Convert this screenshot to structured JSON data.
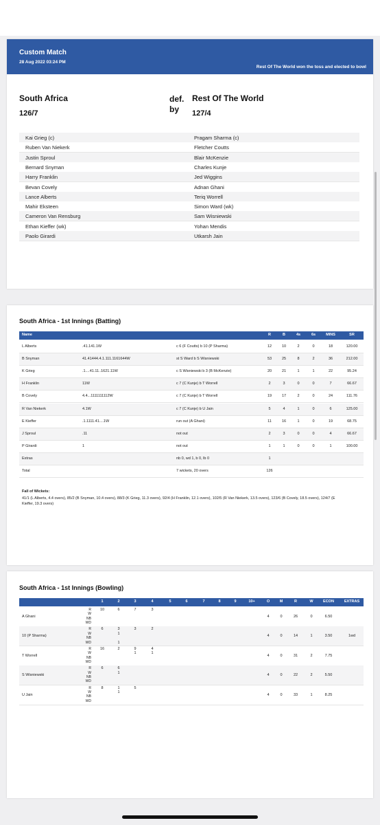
{
  "header": {
    "title": "Custom Match",
    "date": "28 Aug 2022 03:24 PM",
    "toss": "Rest Of The World won the toss and elected to bowl"
  },
  "result": {
    "team1": "South Africa",
    "score1": "126/7",
    "verdict": "def. by",
    "team2": "Rest Of The World",
    "score2": "127/4"
  },
  "players": {
    "team1": [
      "Kai Grieg (c)",
      "Ruben Van Niekerk",
      "Justin Sproul",
      "Bernard Snyman",
      "Harry Franklin",
      "Bevan Covely",
      "Lance Alberts",
      "Mahir Eksteen",
      "Cameron Van Rensburg",
      "Ethan Kieffer (wk)",
      "Paolo Girardi"
    ],
    "team2": [
      "Pragam Sharma (c)",
      "Fletcher Coutts",
      "Blair McKenzie",
      "Charles Kunje",
      "Jed Wiggins",
      "Adnan Ghani",
      "Teriq Worrell",
      "Simon Ward (wk)",
      "Sam Wisniewski",
      "Yohan Mendis",
      "Utkarsh Jain"
    ]
  },
  "batting": {
    "title": "South Africa - 1st Innings (Batting)",
    "columns": [
      "Name",
      "R",
      "B",
      "4s",
      "6s",
      "MINS",
      "SR"
    ],
    "rows": [
      [
        "L Alberts",
        ".41.141.1W",
        "c 6 (F Coutts) b 10 (P Sharma)",
        "12",
        "10",
        "2",
        "0",
        "18",
        "120.00"
      ],
      [
        "B Snyman",
        "41.41444.4.1.111.1161644W",
        "st S Ward b S Wisniewski",
        "53",
        "25",
        "8",
        "2",
        "36",
        "212.00"
      ],
      [
        "K Grieg",
        ".1....41.11..1621.11W",
        "c S Wisniewski b 3 (B McKenzie)",
        "20",
        "21",
        "1",
        "1",
        "22",
        "95.24"
      ],
      [
        "H Franklin",
        "11W",
        "c 7 (C Kunje) b T Worrell",
        "2",
        "3",
        "0",
        "0",
        "7",
        "66.67"
      ],
      [
        "B Covely",
        "4.4...1111111112W",
        "c 7 (C Kunje) b T Worrell",
        "19",
        "17",
        "2",
        "0",
        "24",
        "111.76"
      ],
      [
        "R Van Niekerk",
        "4.1W",
        "c 7 (C Kunje) b U Jain",
        "5",
        "4",
        "1",
        "0",
        "6",
        "125.00"
      ],
      [
        "E Kieffer",
        ".1.1111.41....1W",
        "run out (A Ghani)",
        "11",
        "16",
        "1",
        "0",
        "19",
        "68.75"
      ],
      [
        "J Sproul",
        ".11",
        "not out",
        "2",
        "3",
        "0",
        "0",
        "4",
        "66.67"
      ],
      [
        "P Girardi",
        "1",
        "not out",
        "1",
        "1",
        "0",
        "0",
        "1",
        "100.00"
      ],
      [
        "Extras",
        null,
        "nb 0, wd 1, b 0, lb 0",
        "1"
      ],
      [
        "Total",
        null,
        "7 wickets, 20 overs",
        "126"
      ]
    ],
    "fall_label": "Fall of Wickets:",
    "fall_text": "41/1 (L Alberts, 4.4 overs), 85/2 (B Snyman, 10.4 overs), 88/3 (K Grieg, 11.3 overs), 92/4 (H Franklin, 12.1 overs), 102/5 (R Van Niekerk, 13.5 overs), 123/6 (B Covely, 18.5 overs), 124/7 (E Kieffer, 19.3 overs)"
  },
  "bowling": {
    "title": "South Africa - 1st Innings (Bowling)",
    "columns": [
      "1",
      "2",
      "3",
      "4",
      "5",
      "6",
      "7",
      "8",
      "9",
      "10+",
      "O",
      "M",
      "R",
      "W",
      "ECON",
      "EXTRAS"
    ],
    "line_labels": [
      "R",
      "W",
      "NB",
      "WD"
    ],
    "rows": [
      {
        "name": "A Ghani",
        "lines": [
          [
            "10",
            "6",
            "7",
            "3"
          ],
          [],
          [],
          []
        ],
        "stats": [
          "4",
          "0",
          "26",
          "0",
          "6.50"
        ]
      },
      {
        "name": "10 (P Sharma)",
        "lines": [
          [
            "6",
            "3",
            "3",
            "2"
          ],
          [
            null,
            "1"
          ],
          [],
          [
            null,
            "1"
          ]
        ],
        "stats": [
          "4",
          "0",
          "14",
          "1",
          "3.50",
          "1wd"
        ]
      },
      {
        "name": "T Worrell",
        "lines": [
          [
            "16",
            "2",
            "9",
            "4"
          ],
          [
            null,
            null,
            "1",
            "1"
          ],
          [],
          []
        ],
        "stats": [
          "4",
          "0",
          "31",
          "2",
          "7.75"
        ]
      },
      {
        "name": "S Wisniewski",
        "lines": [
          [
            "6",
            "6"
          ],
          [
            null,
            "1"
          ],
          [],
          []
        ],
        "stats": [
          "4",
          "0",
          "22",
          "2",
          "5.50"
        ]
      },
      {
        "name": "U Jain",
        "lines": [
          [
            "8",
            "1",
            "5"
          ],
          [
            null,
            "1"
          ],
          [],
          []
        ],
        "stats": [
          "4",
          "0",
          "33",
          "1",
          "8.25"
        ]
      }
    ]
  }
}
